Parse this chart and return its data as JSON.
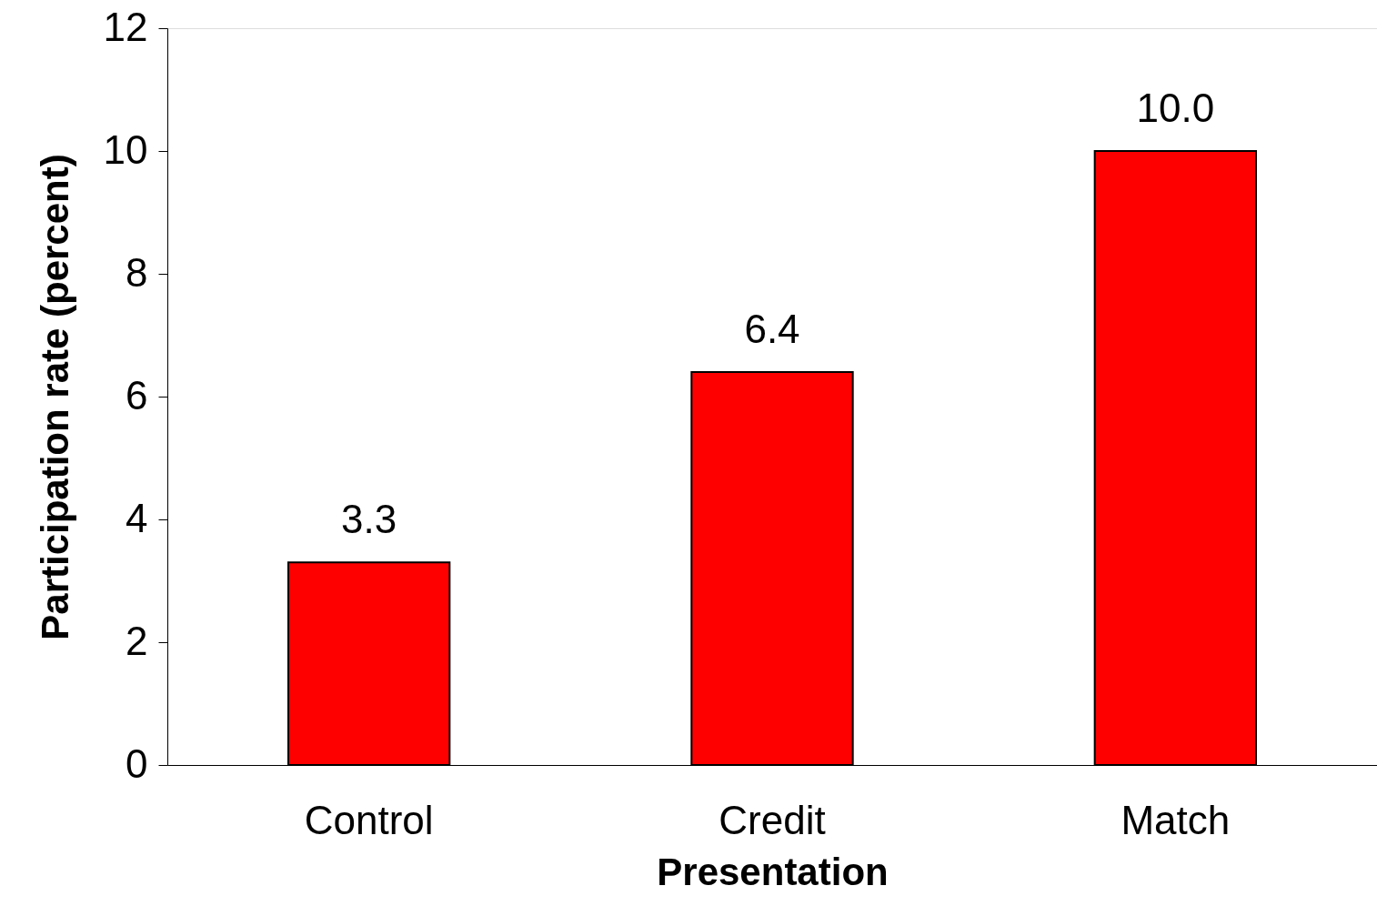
{
  "chart_data": {
    "type": "bar",
    "xlabel": "Presentation",
    "ylabel": "Participation rate (percent)",
    "categories": [
      "Control",
      "Credit",
      "Match"
    ],
    "values": [
      3.3,
      6.4,
      10.0
    ],
    "value_labels": [
      "3.3",
      "6.4",
      "10.0"
    ],
    "color": "#ff0000",
    "ylim": [
      0,
      12
    ],
    "yticks": [
      0,
      2,
      4,
      6,
      8,
      10,
      12
    ]
  }
}
